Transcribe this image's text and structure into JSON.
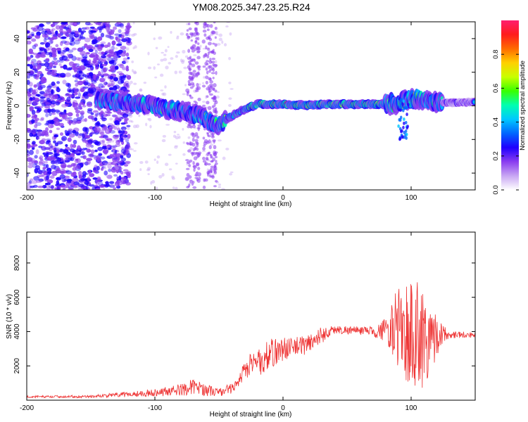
{
  "title": "YM08.2025.347.23.25.R24",
  "charts": {
    "spectrogram": {
      "type": "heatmap",
      "xlabel": "Height of straight line (km)",
      "ylabel": "Frequency (Hz)",
      "xlim": [
        -200,
        150
      ],
      "ylim": [
        -50,
        50
      ],
      "xticks": [
        -200,
        -100,
        0,
        100
      ],
      "yticks": [
        -40,
        -20,
        0,
        20,
        40
      ],
      "ridge": {
        "x": [
          -140,
          -120,
          -100,
          -90,
          -80,
          -70,
          -60,
          -50,
          -45,
          -40,
          -30,
          -20,
          -10,
          0,
          10,
          20,
          40,
          60,
          80,
          90,
          100,
          105,
          110,
          115,
          120,
          130,
          150
        ],
        "freq": [
          3,
          2,
          0,
          -2,
          -3,
          -5,
          -8,
          -12,
          -8,
          -6,
          -2,
          1,
          1,
          1,
          0.5,
          0.5,
          1,
          1,
          1,
          1,
          4,
          5,
          3,
          4,
          2,
          2,
          2
        ]
      },
      "noise_region": [
        -200,
        -140
      ],
      "colorbar": {
        "label": "Normalized spectral amplitude",
        "min": 0.0,
        "max": 1.0,
        "ticks": [
          "0.0",
          "0.2",
          "0.4",
          "0.6",
          "0.8"
        ],
        "colors": [
          "#ffffff",
          "#c8a6f3",
          "#8a3cf0",
          "#1f00ff",
          "#0066ff",
          "#00c8ff",
          "#00ffb0",
          "#38ff00",
          "#c8ff00",
          "#ffd000",
          "#ff6a00",
          "#ff1c1c",
          "#ff1e6e"
        ]
      }
    },
    "snr": {
      "type": "line",
      "xlabel": "Height of straight line (km)",
      "ylabel": "SNR (10 * v/v)",
      "xlim": [
        -200,
        150
      ],
      "ylim": [
        0,
        9800
      ],
      "xticks": [
        -200,
        -100,
        0,
        100
      ],
      "yticks": [
        2000,
        4000,
        6000,
        8000
      ],
      "color": "#ee3333",
      "envelope": {
        "x": [
          -200,
          -150,
          -120,
          -100,
          -80,
          -70,
          -60,
          -50,
          -40,
          -35,
          -30,
          -25,
          -20,
          -10,
          0,
          10,
          20,
          30,
          40,
          50,
          60,
          70,
          80,
          85,
          90,
          95,
          100,
          105,
          110,
          115,
          120,
          125,
          130,
          150
        ],
        "mean": [
          200,
          220,
          350,
          450,
          600,
          800,
          600,
          450,
          700,
          900,
          1800,
          2200,
          2100,
          2700,
          3000,
          3100,
          3300,
          3800,
          4100,
          4100,
          4050,
          4000,
          4100,
          4200,
          4200,
          4000,
          3800,
          3800,
          3700,
          3700,
          3800,
          3850,
          3850,
          3800
        ],
        "amp": [
          60,
          80,
          150,
          220,
          350,
          450,
          350,
          250,
          300,
          350,
          600,
          800,
          800,
          900,
          700,
          600,
          600,
          500,
          250,
          250,
          250,
          300,
          700,
          1500,
          2500,
          3000,
          3500,
          3500,
          3000,
          2500,
          1200,
          500,
          250,
          150
        ]
      }
    }
  }
}
